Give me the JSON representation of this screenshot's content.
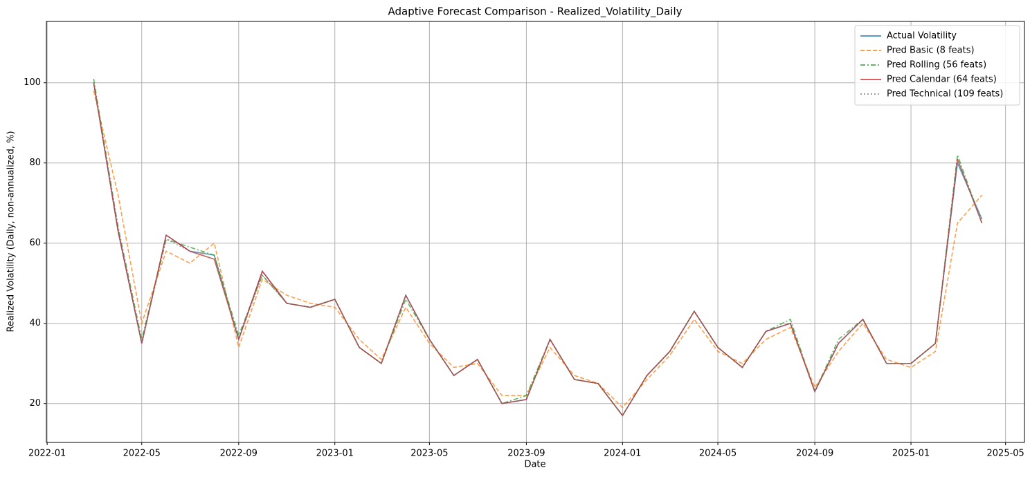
{
  "chart_data": {
    "type": "line",
    "title": "Adaptive Forecast Comparison - Realized_Volatility_Daily",
    "xlabel": "Date",
    "ylabel": "Realized Volatility (Daily, non-annualized, %)",
    "x": [
      "2022-03",
      "2022-04",
      "2022-05",
      "2022-06",
      "2022-07",
      "2022-08",
      "2022-09",
      "2022-10",
      "2022-11",
      "2022-12",
      "2023-01",
      "2023-02",
      "2023-03",
      "2023-04",
      "2023-05",
      "2023-06",
      "2023-07",
      "2023-08",
      "2023-09",
      "2023-10",
      "2023-11",
      "2023-12",
      "2024-01",
      "2024-02",
      "2024-03",
      "2024-04",
      "2024-05",
      "2024-06",
      "2024-07",
      "2024-08",
      "2024-09",
      "2024-10",
      "2024-11",
      "2024-12",
      "2025-01",
      "2025-02",
      "2025-03",
      "2025-04"
    ],
    "series": [
      {
        "name": "Actual Volatility",
        "color": "#1f77b4",
        "linestyle": "solid",
        "values": [
          100,
          63,
          35,
          62,
          58,
          57,
          36,
          53,
          45,
          44,
          46,
          34,
          30,
          47,
          36,
          27,
          31,
          20,
          21,
          36,
          26,
          25,
          17,
          27,
          33,
          43,
          34,
          29,
          38,
          40,
          23,
          35,
          41,
          30,
          30,
          35,
          80,
          66
        ]
      },
      {
        "name": "Pred Basic (8 feats)",
        "color": "#ff7f0e",
        "linestyle": "dashed",
        "values": [
          98,
          72,
          40,
          58,
          55,
          60,
          34,
          51,
          47,
          45,
          44,
          36,
          31,
          44,
          35,
          29,
          30,
          22,
          22,
          34,
          27,
          25,
          19,
          26,
          32,
          41,
          33,
          30,
          36,
          39,
          24,
          33,
          40,
          31,
          29,
          33,
          65,
          72
        ]
      },
      {
        "name": "Pred Rolling (56 feats)",
        "color": "#2ca02c",
        "linestyle": "dashdot",
        "values": [
          101,
          64,
          36,
          61,
          59,
          57,
          37,
          52,
          45,
          44,
          46,
          34,
          30,
          46,
          36,
          27,
          31,
          20,
          22,
          36,
          26,
          25,
          17,
          27,
          33,
          43,
          34,
          29,
          38,
          41,
          23,
          36,
          41,
          30,
          30,
          35,
          82,
          65
        ]
      },
      {
        "name": "Pred Calendar (64 feats)",
        "color": "#d62728",
        "linestyle": "solid",
        "values": [
          100,
          63,
          35,
          62,
          58,
          56,
          36,
          53,
          45,
          44,
          46,
          34,
          30,
          47,
          36,
          27,
          31,
          20,
          21,
          36,
          26,
          25,
          17,
          27,
          33,
          43,
          34,
          29,
          38,
          40,
          23,
          35,
          41,
          30,
          30,
          35,
          81,
          65
        ]
      },
      {
        "name": "Pred Technical (109 feats)",
        "color": "#7f7f7f",
        "linestyle": "dotted",
        "values": [
          100,
          64,
          35,
          61,
          58,
          56,
          36,
          52,
          45,
          44,
          46,
          34,
          30,
          47,
          36,
          27,
          31,
          20,
          21,
          36,
          26,
          25,
          17,
          27,
          33,
          43,
          34,
          29,
          38,
          40,
          23,
          35,
          41,
          30,
          30,
          35,
          81,
          65
        ]
      }
    ],
    "xlim": [
      "2022-01",
      "2025-06"
    ],
    "xticks": [
      "2022-01",
      "2022-05",
      "2022-09",
      "2023-01",
      "2023-05",
      "2023-09",
      "2024-01",
      "2024-05",
      "2024-09",
      "2025-01",
      "2025-05"
    ],
    "ylim": [
      10.3,
      115.3
    ],
    "yticks": [
      20,
      40,
      60,
      80,
      100
    ],
    "grid": true,
    "legend": "upper right"
  }
}
